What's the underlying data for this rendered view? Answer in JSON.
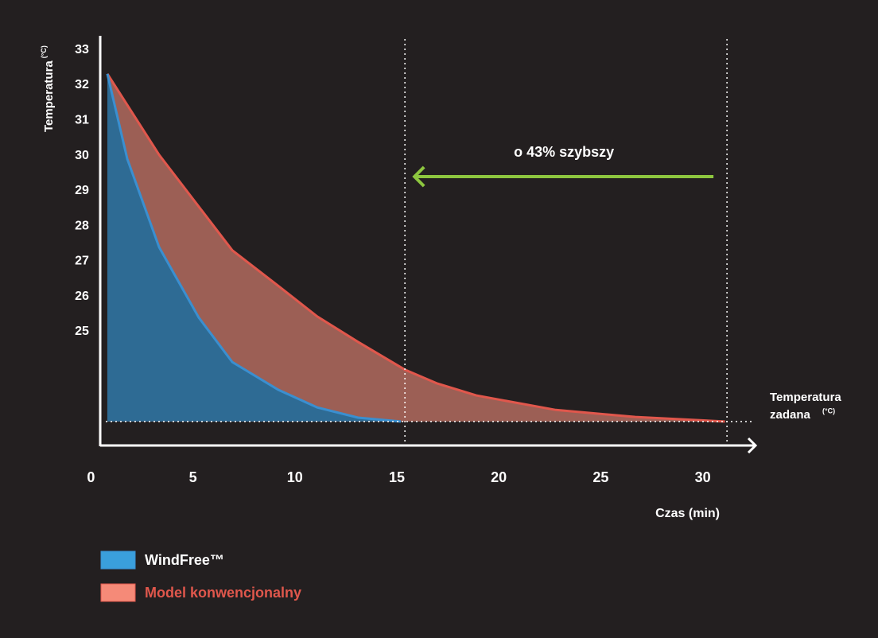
{
  "chart_data": {
    "type": "area",
    "ylabel": "Temperatura",
    "yunit": "(°C)",
    "xlabel": "Czas (min)",
    "xlim": [
      0.45,
      32.6
    ],
    "xticks": [
      0,
      5,
      10,
      15,
      20,
      25,
      30
    ],
    "ylim": [
      21.77,
      33.4
    ],
    "yticks": [
      25,
      26,
      27,
      28,
      29,
      30,
      31,
      32,
      33
    ],
    "setpoint": 22.45,
    "setpoint_label": [
      "Temperatura",
      "zadana"
    ],
    "setpoint_unit": "(°C)",
    "vlines": [
      15.4,
      31.2
    ],
    "annotation": "o 43% szybszy",
    "annotation_color": "#8dc63f",
    "series": [
      {
        "name": "Model konwencjonalny",
        "color": "#e0574c",
        "fill": "#9c5f55",
        "legend_color": "#f58a78",
        "label_color": "#e0574c",
        "x": [
          0.8,
          3.34,
          5.29,
          6.93,
          9.19,
          11.1,
          13.1,
          15.4,
          16.99,
          18.9,
          22.8,
          26.7,
          31.1
        ],
        "values": [
          32.32,
          30.02,
          28.55,
          27.31,
          26.3,
          25.43,
          24.71,
          23.92,
          23.53,
          23.19,
          22.78,
          22.58,
          22.45
        ]
      },
      {
        "name": "WindFree™",
        "color": "#3a8fd0",
        "fill": "#2e6b94",
        "legend_color": "#3a9fdc",
        "label_color": "#ffffff",
        "x": [
          0.8,
          1.78,
          3.34,
          5.29,
          6.93,
          9.19,
          11.1,
          13.1,
          15.2
        ],
        "values": [
          32.32,
          29.9,
          27.4,
          25.4,
          24.14,
          23.35,
          22.85,
          22.56,
          22.45
        ]
      }
    ]
  }
}
